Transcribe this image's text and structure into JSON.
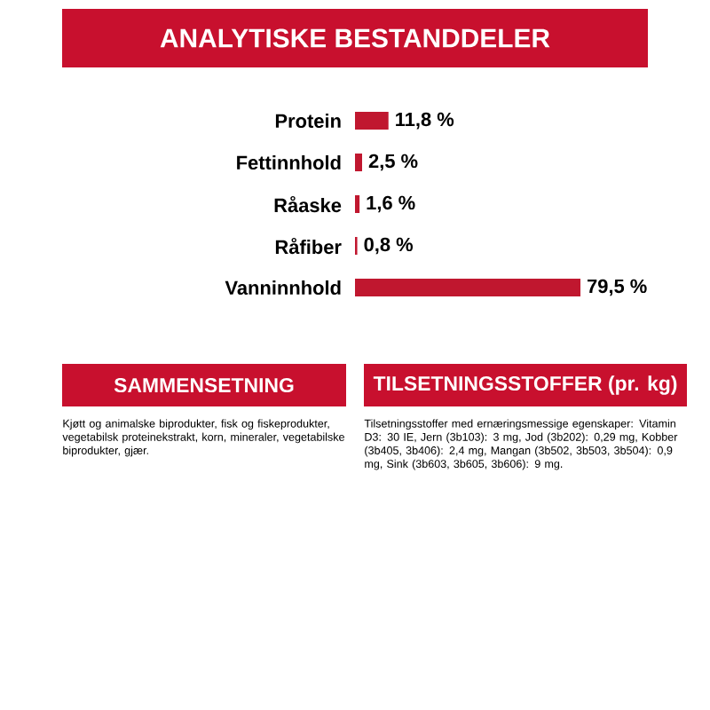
{
  "chart_data": {
    "type": "bar",
    "orientation": "horizontal",
    "title": "ANALYTISKE BESTANDDELER",
    "categories": [
      "Protein",
      "Fettinnhold",
      "Råaske",
      "Råfiber",
      "Vanninnhold"
    ],
    "values": [
      11.8,
      2.5,
      1.6,
      0.8,
      79.5
    ],
    "value_labels": [
      "11,8 %",
      "2,5 %",
      "1,6 %",
      "0,8 %",
      "79,5 %"
    ],
    "color": "#c0172f",
    "annotations": [
      "SAMMENSETNING",
      "Kjøtt og animalske biprodukter, fisk og fiskeprodukter, vegetabilsk proteinekstrakt, korn, mineraler, vegetabilske biprodukter, gjær.",
      "TILSETNINGSSTOFFER (pr. kg)",
      "Tilsetningsstoffer med ernæringsmessige egenskaper: Vitamin D3: 30 IE, Jern (3b103): 3 mg, Jod (3b202): 0,29 mg, Kobber (3b405, 3b406): 2,4 mg, Mangan (3b502, 3b503, 3b504): 0,9 mg, Sink (3b603, 3b605, 3b606): 9 mg."
    ]
  }
}
